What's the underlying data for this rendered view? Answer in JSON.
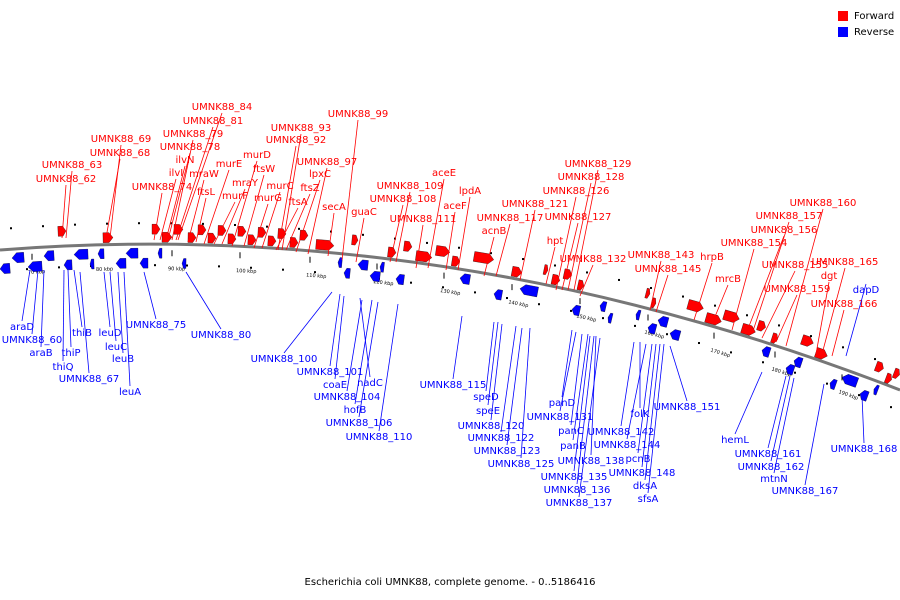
{
  "caption": "Escherichia coli UMNK88, complete genome. - 0..5186416",
  "legend": [
    {
      "label": "Forward",
      "color": "#ff0000"
    },
    {
      "label": "Reverse",
      "color": "#0000ff"
    }
  ],
  "colors": {
    "forward": "#ff0000",
    "reverse": "#0000ff",
    "backbone": "#808080"
  },
  "scale_labels": [
    "70 kbp",
    "80 kbp",
    "90 kbp",
    "100 kbp",
    "110 kbp",
    "120 kbp",
    "130 kbp",
    "140 kbp",
    "150 kbp",
    "160 kbp",
    "170 kbp",
    "180 kbp",
    "190 kbp"
  ],
  "forward_genes": [
    "UMNK88_84",
    "UMNK88_81",
    "UMNK88_79",
    "UMNK88_78",
    "UMNK88_69",
    "UMNK88_68",
    "UMNK88_63",
    "UMNK88_62",
    "ilvN",
    "ilvI",
    "UMNK88_74",
    "mraW",
    "ftsL",
    "murE",
    "murF",
    "mraY",
    "murD",
    "ftsW",
    "murG",
    "murC",
    "ftsA",
    "ftsZ",
    "lpxC",
    "UMNK88_97",
    "secA",
    "UMNK88_93",
    "UMNK88_92",
    "UMNK88_99",
    "guaC",
    "aceE",
    "aceF",
    "lpdA",
    "UMNK88_109",
    "UMNK88_108",
    "UMNK88_111",
    "UMNK88_117",
    "acnB",
    "UMNK88_121",
    "hpt",
    "UMNK88_129",
    "UMNK88_128",
    "UMNK88_126",
    "UMNK88_127",
    "UMNK88_132",
    "UMNK88_143",
    "UMNK88_145",
    "hrpB",
    "mrcB",
    "UMNK88_154",
    "UMNK88_155",
    "UMNK88_157",
    "UMNK88_156",
    "UMNK88_159",
    "UMNK88_160",
    "UMNK88_165",
    "dgt",
    "UMNK88_166"
  ],
  "reverse_genes": [
    "araD",
    "UMNK88_60",
    "araB",
    "thiB",
    "thiP",
    "thiQ",
    "UMNK88_67",
    "leuD",
    "leuC",
    "leuB",
    "leuA",
    "UMNK88_75",
    "UMNK88_80",
    "UMNK88_100",
    "UMNK88_101",
    "coaE",
    "nadC",
    "UMNK88_104",
    "hofB",
    "UMNK88_106",
    "UMNK88_110",
    "UMNK88_115",
    "speD",
    "speE",
    "UMNK88_120",
    "UMNK88_122",
    "UMNK88_123",
    "UMNK88_125",
    "panD",
    "UMNK88_131",
    "panC",
    "panB",
    "UMNK88_138",
    "UMNK88_135",
    "UMNK88_136",
    "UMNK88_137",
    "folK",
    "UMNK88_142",
    "UMNK88_144",
    "pcnB",
    "UMNK88_148",
    "dksA",
    "sfsA",
    "UMNK88_151",
    "hemL",
    "UMNK88_161",
    "UMNK88_162",
    "mtnN",
    "UMNK88_167",
    "dapD",
    "UMNK88_168"
  ]
}
